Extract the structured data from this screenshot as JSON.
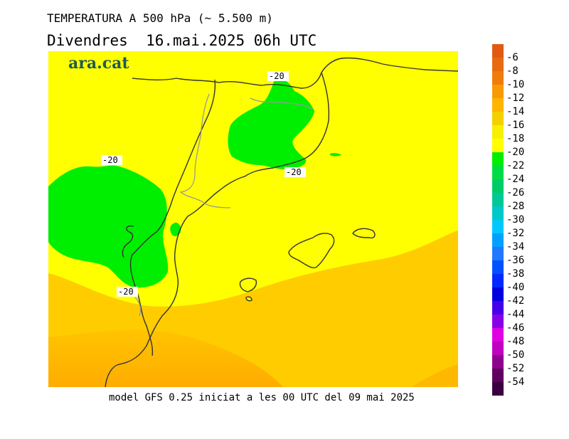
{
  "header": {
    "title_line1": "TEMPERATURA A 500 hPa (~ 5.500 m)",
    "title_line2": "Divendres  16.mai.2025 06h UTC"
  },
  "brand": "ara.cat",
  "footer": "model GFS 0.25 iniciat a les 00 UTC del 09 mai 2025",
  "contour_labels": [
    "-20",
    "-20",
    "-20",
    "-20"
  ],
  "legend": {
    "labels": [
      "-6",
      "-8",
      "-10",
      "-12",
      "-14",
      "-16",
      "-18",
      "-20",
      "-22",
      "-24",
      "-26",
      "-28",
      "-30",
      "-32",
      "-34",
      "-36",
      "-38",
      "-40",
      "-42",
      "-44",
      "-46",
      "-48",
      "-50",
      "-52",
      "-54"
    ],
    "colors": [
      "#e05a14",
      "#e86a10",
      "#f07c0a",
      "#f89a04",
      "#ffb400",
      "#f4d000",
      "#f8f000",
      "#ffff00",
      "#00ee00",
      "#00dd44",
      "#00cc66",
      "#00c896",
      "#00c8c8",
      "#00c8ff",
      "#00a0ff",
      "#2078ff",
      "#0050ff",
      "#0028ff",
      "#0000e0",
      "#4400e8",
      "#8800e8",
      "#e000e0",
      "#c000c0",
      "#900090",
      "#600060",
      "#3a0040"
    ]
  }
}
